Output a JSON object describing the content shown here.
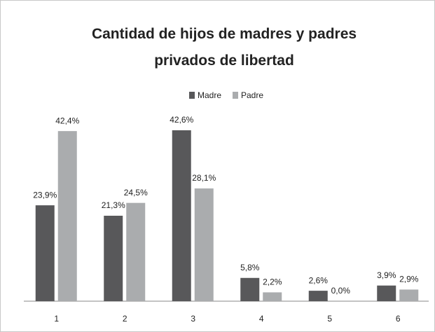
{
  "chart_data": {
    "type": "bar",
    "title": "Cantidad de hijos de madres y padres privados de libertad",
    "categories": [
      "1",
      "2",
      "3",
      "4",
      "5",
      "6"
    ],
    "series": [
      {
        "name": "Madre",
        "color": "#58585a",
        "values": [
          23.9,
          21.3,
          42.6,
          5.8,
          2.6,
          3.9
        ],
        "value_labels": [
          "23,9%",
          "21,3%",
          "42,6%",
          "5,8%",
          "2,6%",
          "3,9%"
        ]
      },
      {
        "name": "Padre",
        "color": "#aaacae",
        "values": [
          42.4,
          24.5,
          28.1,
          2.2,
          0.0,
          2.9
        ],
        "value_labels": [
          "42,4%",
          "24,5%",
          "28,1%",
          "2,2%",
          "0,0%",
          "2,9%"
        ]
      }
    ]
  }
}
